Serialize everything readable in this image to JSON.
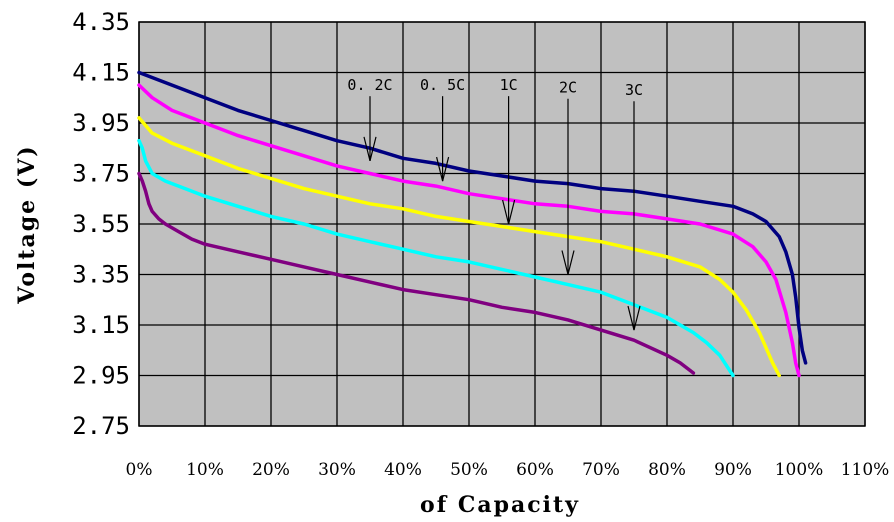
{
  "chart_data": {
    "type": "line",
    "title": "",
    "xlabel": "of Capacity",
    "ylabel": "Voltage (V)",
    "xlim": [
      0,
      110
    ],
    "ylim": [
      2.75,
      4.35
    ],
    "x_tick_labels": [
      "0%",
      "10%",
      "20%",
      "30%",
      "40%",
      "50%",
      "60%",
      "70%",
      "80%",
      "90%",
      "100%",
      "110%"
    ],
    "y_tick_labels": [
      "4.35",
      "4.15",
      "3.95",
      "3.75",
      "3.55",
      "3.35",
      "3.15",
      "2.95",
      "2.75"
    ],
    "grid": true,
    "plot_background": "#c0c0c0",
    "series": [
      {
        "color": "#000080",
        "x": [
          0,
          5,
          10,
          15,
          20,
          25,
          30,
          35,
          40,
          45,
          50,
          55,
          60,
          65,
          70,
          75,
          80,
          85,
          90,
          93,
          95,
          97,
          98,
          99,
          99.5,
          100,
          100.5,
          101
        ],
        "y": [
          4.15,
          4.1,
          4.05,
          4.0,
          3.96,
          3.92,
          3.88,
          3.85,
          3.81,
          3.79,
          3.76,
          3.74,
          3.72,
          3.71,
          3.69,
          3.68,
          3.66,
          3.64,
          3.62,
          3.59,
          3.56,
          3.5,
          3.44,
          3.35,
          3.26,
          3.14,
          3.05,
          3.0
        ]
      },
      {
        "color": "#ff00ff",
        "x": [
          0,
          2,
          5,
          10,
          15,
          20,
          25,
          30,
          35,
          40,
          45,
          50,
          55,
          60,
          65,
          70,
          75,
          80,
          85,
          90,
          93,
          95,
          96.5,
          98,
          99,
          99.5,
          100
        ],
        "y": [
          4.1,
          4.05,
          4.0,
          3.95,
          3.9,
          3.86,
          3.82,
          3.78,
          3.75,
          3.72,
          3.7,
          3.67,
          3.65,
          3.63,
          3.62,
          3.6,
          3.59,
          3.57,
          3.55,
          3.51,
          3.46,
          3.4,
          3.33,
          3.2,
          3.08,
          3.0,
          2.95
        ]
      },
      {
        "color": "#ffff00",
        "x": [
          0,
          1,
          2,
          5,
          10,
          15,
          20,
          25,
          30,
          35,
          40,
          45,
          50,
          55,
          60,
          65,
          70,
          75,
          80,
          85,
          88,
          90,
          92,
          94,
          95,
          96,
          97
        ],
        "y": [
          3.97,
          3.94,
          3.91,
          3.87,
          3.82,
          3.77,
          3.73,
          3.69,
          3.66,
          3.63,
          3.61,
          3.58,
          3.56,
          3.54,
          3.52,
          3.5,
          3.48,
          3.45,
          3.42,
          3.38,
          3.33,
          3.28,
          3.21,
          3.12,
          3.06,
          3.0,
          2.95
        ]
      },
      {
        "color": "#00ffff",
        "x": [
          0,
          0.5,
          1,
          2,
          4,
          6,
          10,
          15,
          20,
          25,
          30,
          35,
          40,
          45,
          50,
          55,
          60,
          65,
          70,
          75,
          80,
          84,
          86,
          88,
          89,
          90
        ],
        "y": [
          3.88,
          3.85,
          3.8,
          3.75,
          3.72,
          3.7,
          3.66,
          3.62,
          3.58,
          3.55,
          3.51,
          3.48,
          3.45,
          3.42,
          3.4,
          3.37,
          3.34,
          3.31,
          3.28,
          3.23,
          3.18,
          3.12,
          3.08,
          3.03,
          2.99,
          2.95
        ]
      },
      {
        "color": "#800080",
        "x": [
          0,
          0.5,
          1,
          1.5,
          2,
          3,
          4,
          6,
          8,
          10,
          15,
          20,
          25,
          30,
          35,
          40,
          45,
          50,
          55,
          60,
          65,
          70,
          75,
          80,
          82,
          84
        ],
        "y": [
          3.75,
          3.72,
          3.68,
          3.63,
          3.6,
          3.57,
          3.55,
          3.52,
          3.49,
          3.47,
          3.44,
          3.41,
          3.38,
          3.35,
          3.32,
          3.29,
          3.27,
          3.25,
          3.22,
          3.2,
          3.17,
          3.13,
          3.09,
          3.03,
          3.0,
          2.96
        ]
      }
    ],
    "annotations": [
      {
        "text": "0. 2C",
        "x": 35,
        "y_text": 4.08,
        "arrow_to": [
          35,
          3.8
        ]
      },
      {
        "text": "0. 5C",
        "x": 46,
        "y_text": 4.08,
        "arrow_to": [
          46,
          3.72
        ]
      },
      {
        "text": "1C",
        "x": 56,
        "y_text": 4.08,
        "arrow_to": [
          56,
          3.55
        ]
      },
      {
        "text": "2C",
        "x": 65,
        "y_text": 4.07,
        "arrow_to": [
          65,
          3.35
        ]
      },
      {
        "text": "3C",
        "x": 75,
        "y_text": 4.06,
        "arrow_to": [
          75,
          3.13
        ]
      }
    ]
  }
}
